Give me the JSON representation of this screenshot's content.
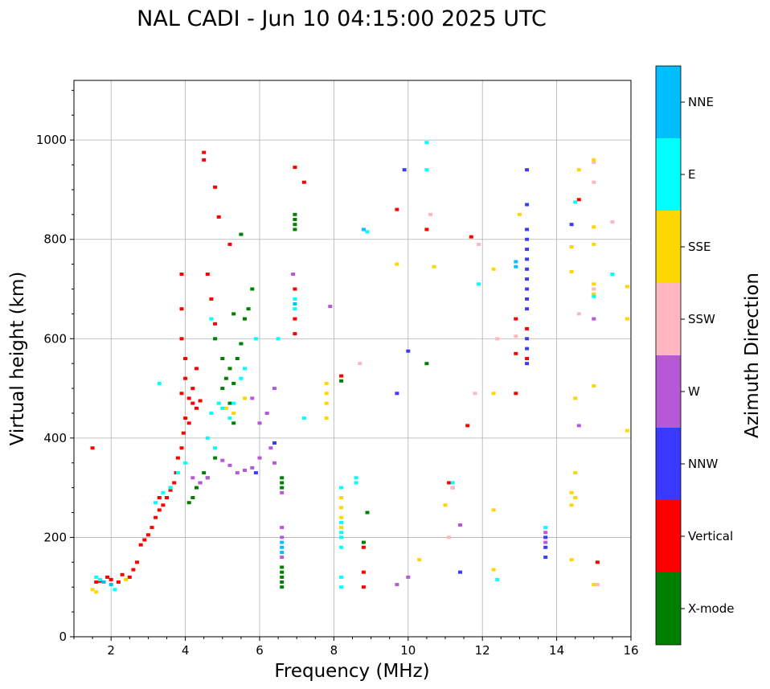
{
  "chart_data": {
    "type": "scatter",
    "title": "NAL CADI - Jun 10 04:15:00 2025 UTC",
    "xlabel": "Frequency (MHz)",
    "ylabel": "Virtual height (km)",
    "xlim": [
      1,
      16
    ],
    "ylim": [
      0,
      1120
    ],
    "xticks": [
      2,
      4,
      6,
      8,
      10,
      12,
      14,
      16
    ],
    "yticks": [
      0,
      200,
      400,
      600,
      800,
      1000
    ],
    "grid": true,
    "colorbar": {
      "label": "Azimuth Direction",
      "categories": [
        {
          "name": "X-mode",
          "color": "#008000"
        },
        {
          "name": "Vertical",
          "color": "#ff0000"
        },
        {
          "name": "NNW",
          "color": "#3a3aff"
        },
        {
          "name": "W",
          "color": "#b658d8"
        },
        {
          "name": "SSW",
          "color": "#ffb6c1"
        },
        {
          "name": "SSE",
          "color": "#ffd700"
        },
        {
          "name": "E",
          "color": "#00ffff"
        },
        {
          "name": "NNE",
          "color": "#00bfff"
        }
      ]
    },
    "series": [
      {
        "name": "Vertical",
        "points": [
          [
            1.5,
            380
          ],
          [
            1.6,
            110
          ],
          [
            1.7,
            112
          ],
          [
            1.9,
            120
          ],
          [
            2.0,
            115
          ],
          [
            2.3,
            125
          ],
          [
            2.6,
            135
          ],
          [
            2.7,
            150
          ],
          [
            2.8,
            185
          ],
          [
            2.9,
            195
          ],
          [
            3.0,
            205
          ],
          [
            3.1,
            220
          ],
          [
            3.2,
            240
          ],
          [
            3.3,
            255
          ],
          [
            3.4,
            265
          ],
          [
            3.5,
            280
          ],
          [
            3.6,
            295
          ],
          [
            3.7,
            310
          ],
          [
            3.75,
            330
          ],
          [
            3.8,
            360
          ],
          [
            3.9,
            380
          ],
          [
            3.95,
            410
          ],
          [
            4.0,
            440
          ],
          [
            3.9,
            490
          ],
          [
            4.0,
            520
          ],
          [
            4.1,
            480
          ],
          [
            4.2,
            470
          ],
          [
            4.3,
            460
          ],
          [
            4.4,
            475
          ],
          [
            4.1,
            430
          ],
          [
            3.9,
            600
          ],
          [
            4.0,
            560
          ],
          [
            3.9,
            660
          ],
          [
            3.9,
            730
          ],
          [
            4.5,
            960
          ],
          [
            4.5,
            975
          ],
          [
            4.8,
            905
          ],
          [
            4.9,
            845
          ],
          [
            5.2,
            790
          ],
          [
            4.6,
            730
          ],
          [
            4.7,
            680
          ],
          [
            4.8,
            630
          ],
          [
            4.3,
            540
          ],
          [
            4.2,
            500
          ],
          [
            6.95,
            610
          ],
          [
            6.95,
            640
          ],
          [
            6.95,
            700
          ],
          [
            6.95,
            945
          ],
          [
            7.2,
            915
          ],
          [
            8.2,
            525
          ],
          [
            8.8,
            130
          ],
          [
            8.8,
            180
          ],
          [
            8.8,
            100
          ],
          [
            9.7,
            860
          ],
          [
            10.5,
            820
          ],
          [
            11.1,
            310
          ],
          [
            11.6,
            425
          ],
          [
            11.7,
            805
          ],
          [
            12.9,
            490
          ],
          [
            12.9,
            570
          ],
          [
            12.9,
            640
          ],
          [
            13.2,
            560
          ],
          [
            13.2,
            620
          ],
          [
            14.6,
            880
          ],
          [
            15.1,
            150
          ],
          [
            2.2,
            110
          ],
          [
            2.5,
            120
          ],
          [
            3.3,
            280
          ],
          [
            3.6,
            300
          ]
        ]
      },
      {
        "name": "X-mode",
        "points": [
          [
            4.1,
            270
          ],
          [
            4.2,
            280
          ],
          [
            4.3,
            300
          ],
          [
            4.4,
            310
          ],
          [
            4.5,
            330
          ],
          [
            4.6,
            320
          ],
          [
            4.8,
            360
          ],
          [
            5.0,
            500
          ],
          [
            5.1,
            520
          ],
          [
            5.2,
            540
          ],
          [
            5.3,
            510
          ],
          [
            5.4,
            560
          ],
          [
            5.5,
            590
          ],
          [
            5.6,
            640
          ],
          [
            5.7,
            660
          ],
          [
            5.8,
            700
          ],
          [
            5.2,
            470
          ],
          [
            5.0,
            560
          ],
          [
            4.8,
            600
          ],
          [
            5.3,
            650
          ],
          [
            5.5,
            810
          ],
          [
            6.6,
            100
          ],
          [
            6.6,
            110
          ],
          [
            6.6,
            120
          ],
          [
            6.6,
            130
          ],
          [
            6.6,
            140
          ],
          [
            6.6,
            300
          ],
          [
            6.6,
            310
          ],
          [
            6.6,
            320
          ],
          [
            6.95,
            820
          ],
          [
            6.95,
            830
          ],
          [
            6.95,
            840
          ],
          [
            6.95,
            850
          ],
          [
            8.2,
            515
          ],
          [
            8.8,
            190
          ],
          [
            8.9,
            250
          ],
          [
            10.5,
            550
          ],
          [
            5.3,
            430
          ]
        ]
      },
      {
        "name": "NNW",
        "points": [
          [
            13.2,
            550
          ],
          [
            13.2,
            580
          ],
          [
            13.2,
            600
          ],
          [
            13.2,
            660
          ],
          [
            13.2,
            680
          ],
          [
            13.2,
            700
          ],
          [
            13.2,
            720
          ],
          [
            13.2,
            740
          ],
          [
            13.2,
            760
          ],
          [
            13.2,
            780
          ],
          [
            13.2,
            800
          ],
          [
            13.2,
            820
          ],
          [
            13.2,
            940
          ],
          [
            13.2,
            870
          ],
          [
            13.7,
            160
          ],
          [
            13.7,
            180
          ],
          [
            13.7,
            200
          ],
          [
            11.4,
            130
          ],
          [
            10.0,
            575
          ],
          [
            9.9,
            940
          ],
          [
            9.7,
            490
          ],
          [
            6.4,
            390
          ],
          [
            5.9,
            330
          ],
          [
            14.4,
            830
          ],
          [
            11.2,
            300
          ]
        ]
      },
      {
        "name": "W",
        "points": [
          [
            6.6,
            160
          ],
          [
            6.6,
            200
          ],
          [
            6.6,
            220
          ],
          [
            6.6,
            290
          ],
          [
            6.4,
            350
          ],
          [
            6.3,
            380
          ],
          [
            6.0,
            360
          ],
          [
            5.8,
            340
          ],
          [
            5.6,
            335
          ],
          [
            5.4,
            330
          ],
          [
            5.2,
            345
          ],
          [
            5.0,
            355
          ],
          [
            4.6,
            320
          ],
          [
            4.4,
            310
          ],
          [
            4.2,
            320
          ],
          [
            6.4,
            500
          ],
          [
            6.2,
            450
          ],
          [
            6.0,
            430
          ],
          [
            5.8,
            480
          ],
          [
            11.4,
            225
          ],
          [
            13.7,
            210
          ],
          [
            13.7,
            190
          ],
          [
            10.0,
            120
          ],
          [
            9.7,
            105
          ],
          [
            14.6,
            425
          ],
          [
            15.0,
            640
          ],
          [
            6.9,
            730
          ],
          [
            7.9,
            665
          ]
        ]
      },
      {
        "name": "SSW",
        "points": [
          [
            10.6,
            850
          ],
          [
            11.2,
            300
          ],
          [
            11.1,
            200
          ],
          [
            11.9,
            790
          ],
          [
            12.9,
            605
          ],
          [
            14.6,
            650
          ],
          [
            15.0,
            915
          ],
          [
            15.5,
            835
          ],
          [
            15.0,
            955
          ],
          [
            15.1,
            105
          ],
          [
            12.4,
            600
          ],
          [
            8.7,
            550
          ],
          [
            11.8,
            490
          ],
          [
            15.0,
            700
          ]
        ]
      },
      {
        "name": "SSE",
        "points": [
          [
            7.8,
            470
          ],
          [
            7.8,
            490
          ],
          [
            7.8,
            510
          ],
          [
            7.8,
            440
          ],
          [
            8.2,
            220
          ],
          [
            8.2,
            240
          ],
          [
            8.2,
            260
          ],
          [
            8.2,
            280
          ],
          [
            13.0,
            850
          ],
          [
            12.3,
            740
          ],
          [
            14.6,
            940
          ],
          [
            15.0,
            960
          ],
          [
            15.0,
            825
          ],
          [
            15.0,
            790
          ],
          [
            15.0,
            710
          ],
          [
            15.0,
            690
          ],
          [
            15.0,
            505
          ],
          [
            14.5,
            480
          ],
          [
            14.4,
            290
          ],
          [
            14.5,
            280
          ],
          [
            14.4,
            265
          ],
          [
            14.5,
            330
          ],
          [
            14.4,
            155
          ],
          [
            15.0,
            105
          ],
          [
            15.9,
            640
          ],
          [
            15.9,
            705
          ],
          [
            15.9,
            415
          ],
          [
            12.3,
            490
          ],
          [
            12.3,
            255
          ],
          [
            12.3,
            135
          ],
          [
            11.0,
            265
          ],
          [
            10.7,
            745
          ],
          [
            10.3,
            155
          ],
          [
            9.7,
            750
          ],
          [
            5.1,
            460
          ],
          [
            5.3,
            450
          ],
          [
            5.6,
            480
          ],
          [
            1.5,
            95
          ],
          [
            2.4,
            115
          ],
          [
            1.6,
            90
          ],
          [
            4.9,
            470
          ],
          [
            14.4,
            785
          ],
          [
            14.4,
            735
          ]
        ]
      },
      {
        "name": "E",
        "points": [
          [
            8.2,
            180
          ],
          [
            8.2,
            200
          ],
          [
            8.2,
            210
          ],
          [
            8.2,
            230
          ],
          [
            8.2,
            100
          ],
          [
            8.2,
            120
          ],
          [
            8.2,
            300
          ],
          [
            8.6,
            320
          ],
          [
            8.6,
            310
          ],
          [
            8.9,
            815
          ],
          [
            10.5,
            995
          ],
          [
            10.5,
            940
          ],
          [
            11.2,
            310
          ],
          [
            12.4,
            115
          ],
          [
            13.7,
            220
          ],
          [
            15.0,
            685
          ],
          [
            15.5,
            730
          ],
          [
            7.2,
            440
          ],
          [
            4.7,
            450
          ],
          [
            4.9,
            470
          ],
          [
            5.0,
            460
          ],
          [
            5.2,
            440
          ],
          [
            5.3,
            470
          ],
          [
            5.5,
            520
          ],
          [
            5.6,
            540
          ],
          [
            4.6,
            400
          ],
          [
            4.8,
            380
          ],
          [
            4.0,
            350
          ],
          [
            3.8,
            330
          ],
          [
            3.6,
            300
          ],
          [
            3.4,
            290
          ],
          [
            3.2,
            270
          ],
          [
            1.6,
            120
          ],
          [
            1.7,
            115
          ],
          [
            2.1,
            95
          ],
          [
            5.9,
            600
          ],
          [
            6.5,
            600
          ],
          [
            6.95,
            680
          ],
          [
            6.95,
            660
          ],
          [
            11.9,
            710
          ],
          [
            14.5,
            875
          ],
          [
            3.3,
            510
          ],
          [
            4.7,
            640
          ]
        ]
      },
      {
        "name": "NNE",
        "points": [
          [
            12.9,
            745
          ],
          [
            12.9,
            755
          ],
          [
            6.6,
            170
          ],
          [
            6.6,
            180
          ],
          [
            6.95,
            670
          ],
          [
            8.8,
            820
          ],
          [
            1.8,
            110
          ],
          [
            2.0,
            105
          ],
          [
            6.6,
            190
          ]
        ]
      }
    ]
  }
}
